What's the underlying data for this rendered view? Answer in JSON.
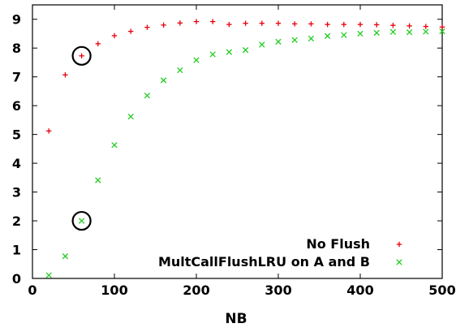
{
  "chart_data": {
    "type": "scatter",
    "title": "",
    "xlabel": "NB",
    "ylabel": "",
    "xlim": [
      0,
      500
    ],
    "ylim": [
      0,
      9.5
    ],
    "xticks": [
      0,
      100,
      200,
      300,
      400,
      500
    ],
    "yticks": [
      0,
      1,
      2,
      3,
      4,
      5,
      6,
      7,
      8,
      9
    ],
    "grid": false,
    "legend_position": "bottom-right",
    "series": [
      {
        "name": "No Flush",
        "marker": "plus",
        "color": "#e8000b",
        "x": [
          20,
          40,
          60,
          80,
          100,
          120,
          140,
          160,
          180,
          200,
          220,
          240,
          260,
          280,
          300,
          320,
          340,
          360,
          380,
          400,
          420,
          440,
          460,
          480,
          500
        ],
        "y": [
          5.12,
          7.07,
          7.73,
          8.15,
          8.43,
          8.58,
          8.72,
          8.8,
          8.87,
          8.92,
          8.92,
          8.82,
          8.86,
          8.86,
          8.86,
          8.84,
          8.84,
          8.82,
          8.82,
          8.82,
          8.81,
          8.79,
          8.77,
          8.75,
          8.73
        ]
      },
      {
        "name": "MultCallFlushLRU on A and B",
        "marker": "cross",
        "color": "#22cc22",
        "x": [
          20,
          40,
          60,
          80,
          100,
          120,
          140,
          160,
          180,
          200,
          220,
          240,
          260,
          280,
          300,
          320,
          340,
          360,
          380,
          400,
          420,
          440,
          460,
          480,
          500
        ],
        "y": [
          0.11,
          0.77,
          2.0,
          3.41,
          4.63,
          5.62,
          6.35,
          6.88,
          7.23,
          7.58,
          7.78,
          7.86,
          7.93,
          8.12,
          8.22,
          8.28,
          8.33,
          8.42,
          8.45,
          8.5,
          8.53,
          8.56,
          8.55,
          8.57,
          8.58
        ]
      }
    ],
    "annotations": [
      {
        "type": "circle",
        "x": 60,
        "y": 7.73
      },
      {
        "type": "circle",
        "x": 60,
        "y": 2.0
      }
    ]
  }
}
